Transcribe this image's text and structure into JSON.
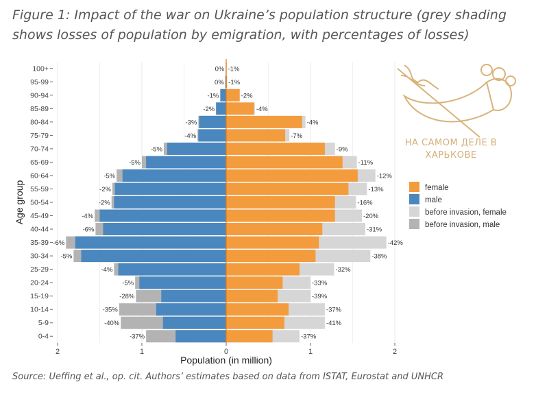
{
  "title": "Figure 1: Impact of the war on Ukraine’s population structure (grey shading shows losses of population by emigration, with percentages of losses)",
  "source": "Source: Ueffing et al., op. cit. Authors’ estimates based on data from ISTAT, Eurostat and UNHCR",
  "watermark": {
    "line1": "НА САМОМ ДЕЛЕ В",
    "line2": "ХАРЬКОВЕ"
  },
  "colors": {
    "female": "#f39c3e",
    "male": "#4a87bf",
    "before_female": "#d6d6d6",
    "before_male": "#b3b3b3",
    "grid": "#ebebeb"
  },
  "chart_data": {
    "type": "bar",
    "orientation": "horizontal-pyramid",
    "xlabel": "Population (in million)",
    "ylabel": "Age group",
    "x_ticks": [
      "2",
      "1",
      "0",
      "1",
      "2"
    ],
    "xlim": [
      -2.1,
      2.1
    ],
    "grid": true,
    "legend_position": "right",
    "legend": [
      "female",
      "male",
      "before invasion, female",
      "before invasion, male"
    ],
    "categories": [
      "0-4",
      "5-9",
      "10-14",
      "15-19",
      "20-24",
      "25-29",
      "30-34",
      "35-39",
      "40-44",
      "45-49",
      "50-54",
      "55-59",
      "60-64",
      "65-69",
      "70-74",
      "75-79",
      "80-84",
      "85-89",
      "90-94",
      "95-99",
      "100+"
    ],
    "series": [
      {
        "name": "male",
        "values": [
          0.6,
          0.75,
          0.83,
          0.77,
          1.03,
          1.28,
          1.72,
          1.79,
          1.46,
          1.5,
          1.33,
          1.32,
          1.23,
          0.95,
          0.7,
          0.33,
          0.32,
          0.12,
          0.07,
          0.01,
          0.005
        ]
      },
      {
        "name": "before invasion, male",
        "values": [
          0.95,
          1.25,
          1.27,
          1.07,
          1.08,
          1.33,
          1.81,
          1.9,
          1.55,
          1.56,
          1.36,
          1.35,
          1.3,
          1.0,
          0.74,
          0.34,
          0.33,
          0.12,
          0.07,
          0.01,
          0.005
        ]
      },
      {
        "name": "female",
        "values": [
          0.55,
          0.69,
          0.74,
          0.61,
          0.67,
          0.87,
          1.06,
          1.1,
          1.14,
          1.29,
          1.29,
          1.45,
          1.56,
          1.38,
          1.17,
          0.7,
          0.9,
          0.33,
          0.16,
          0.01,
          0.005
        ]
      },
      {
        "name": "before invasion, female",
        "values": [
          0.87,
          1.17,
          1.17,
          1.0,
          1.0,
          1.28,
          1.71,
          1.9,
          1.65,
          1.61,
          1.54,
          1.67,
          1.77,
          1.55,
          1.29,
          0.75,
          0.94,
          0.34,
          0.16,
          0.01,
          0.005
        ]
      }
    ],
    "male_loss_labels": [
      "-37%",
      "-40%",
      "-35%",
      "-28%",
      "-5%",
      "-4%",
      "-5%",
      "-6%",
      "-6%",
      "-4%",
      "-2%",
      "-2%",
      "-5%",
      "-5%",
      "-5%",
      "-4%",
      "-3%",
      "-2%",
      "-1%",
      "0%",
      "0%"
    ],
    "female_loss_labels": [
      "-37%",
      "-41%",
      "-37%",
      "-39%",
      "-33%",
      "-32%",
      "-38%",
      "-42%",
      "-31%",
      "-20%",
      "-16%",
      "-13%",
      "-12%",
      "-11%",
      "-9%",
      "-7%",
      "-4%",
      "-4%",
      "-2%",
      "-1%",
      "-1%"
    ]
  }
}
